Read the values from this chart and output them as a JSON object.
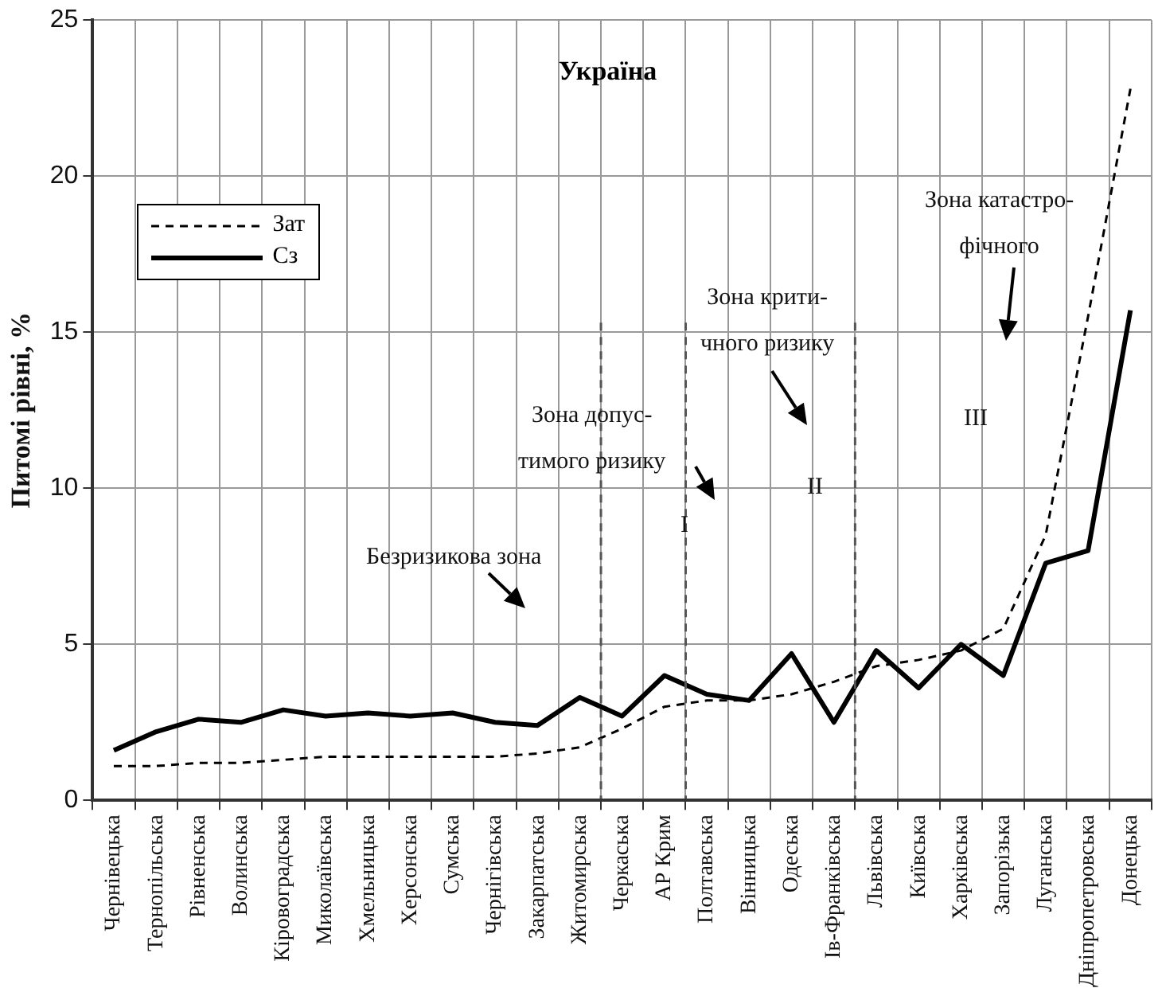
{
  "chart_data": {
    "type": "line",
    "title": "Україна",
    "ylabel": "Питомі рівні, %",
    "categories": [
      "Чернівецька",
      "Тернопільська",
      "Рівненська",
      "Волинська",
      "Кіровоградська",
      "Миколаївська",
      "Хмельницька",
      "Херсонська",
      "Сумська",
      "Чернігівська",
      "Закарпатська",
      "Житомирська",
      "Черкаська",
      "АР Крим",
      "Полтавська",
      "Вінницька",
      "Одеська",
      "Ів-Франківська",
      "Львівська",
      "Київська",
      "Харківська",
      "Запорізька",
      "Луганська",
      "Дніпропетровська",
      "Донецька"
    ],
    "series": [
      {
        "name": "Зат",
        "color": "#000000",
        "line_style": "dashed",
        "values": [
          1.1,
          1.1,
          1.2,
          1.2,
          1.3,
          1.4,
          1.4,
          1.4,
          1.4,
          1.4,
          1.5,
          1.7,
          2.3,
          3.0,
          3.2,
          3.2,
          3.4,
          3.8,
          4.3,
          4.5,
          4.8,
          5.5,
          8.5,
          15.5,
          22.8
        ]
      },
      {
        "name": "Сз",
        "color": "#000000",
        "line_style": "solid",
        "values": [
          1.6,
          2.2,
          2.6,
          2.5,
          2.9,
          2.7,
          2.8,
          2.7,
          2.8,
          2.5,
          2.4,
          3.3,
          2.7,
          4.0,
          3.4,
          3.2,
          4.7,
          2.5,
          4.8,
          3.6,
          5.0,
          4.0,
          7.6,
          8.0,
          15.7
        ]
      }
    ],
    "ylim": [
      0,
      25
    ],
    "yticks": [
      0,
      5,
      10,
      15,
      20,
      25
    ],
    "grid": true,
    "legend": "top left",
    "ref_lines": [
      {
        "axis": "x",
        "value": "Черкаська",
        "color": "#555555",
        "line_style": "dashed"
      },
      {
        "axis": "x",
        "value": "Полтавська",
        "color": "#555555",
        "line_style": "dashed"
      },
      {
        "axis": "x",
        "value": "Львівська",
        "color": "#555555",
        "line_style": "dashed"
      }
    ],
    "annotations": [
      "Безризикова зона",
      "Зона допус-\nтимого ризику",
      "Зона крити-\nчного ризику",
      "Зона катастро-\nфічного",
      "I",
      "II",
      "III"
    ]
  }
}
